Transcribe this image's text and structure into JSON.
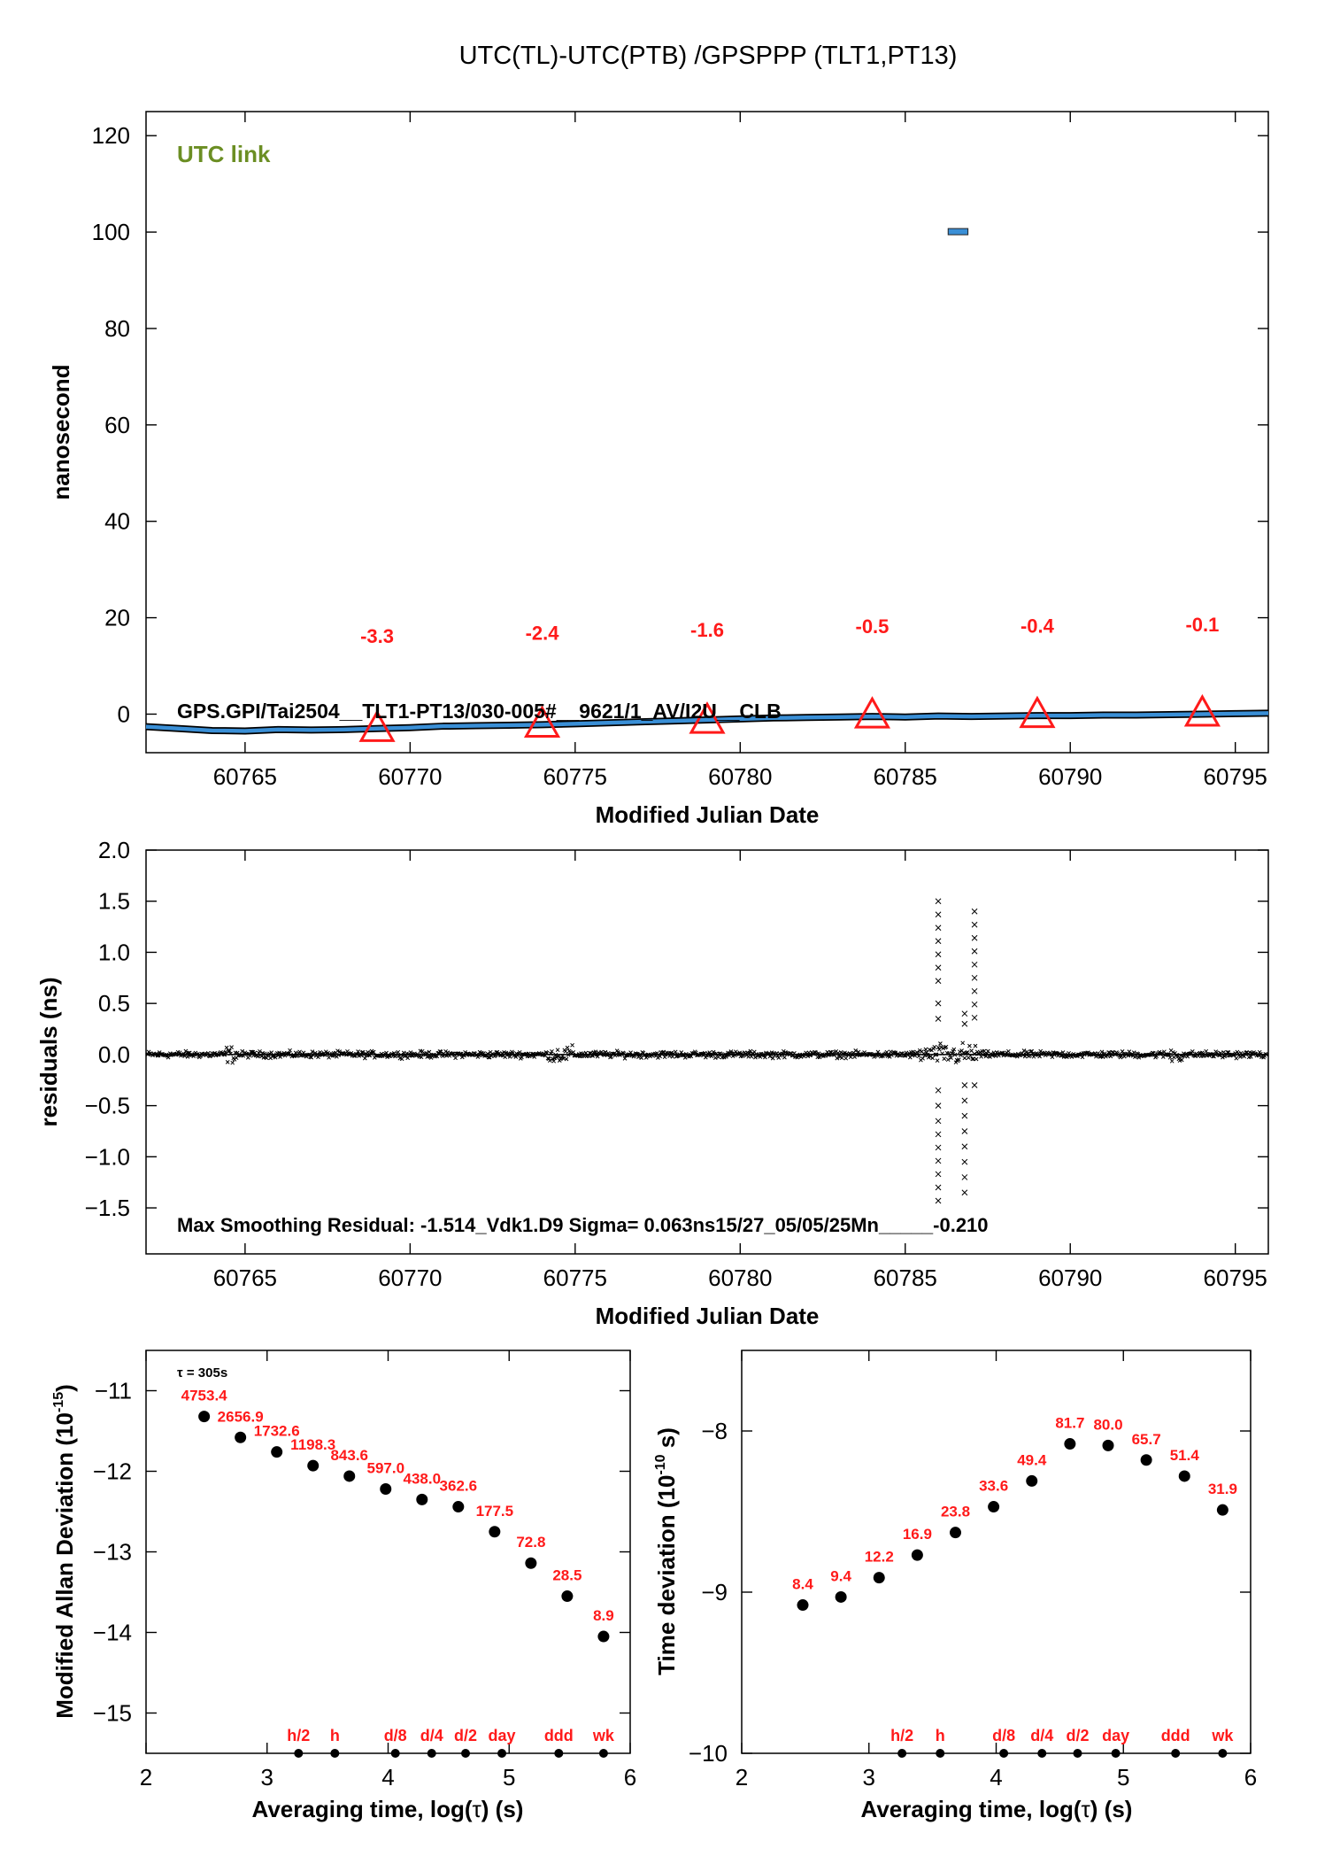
{
  "page_title": "UTC(TL)-UTC(PTB)  /GPSPPP  (TLT1,PT13)",
  "colors": {
    "red": "#ff1a1a",
    "blue": "#3a8fd6",
    "green": "#6b8e23",
    "black": "#000000"
  },
  "panel1": {
    "badge": "UTC link",
    "info_text": "GPS.GPI/Tai2504__TLT1-PT13/030-005#__9621/1_AV/I2U__CLB",
    "xlabel": "Modified Julian Date",
    "ylabel": "nanosecond",
    "xticks": [
      "60765",
      "60770",
      "60775",
      "60780",
      "60785",
      "60790",
      "60795"
    ],
    "yticks": [
      "0",
      "20",
      "40",
      "60",
      "80",
      "100",
      "120"
    ],
    "chart_data": {
      "type": "line",
      "xlim": [
        60762,
        60796
      ],
      "ylim": [
        -8,
        125
      ],
      "series_points": [
        [
          60762,
          -2.6
        ],
        [
          60763,
          -3.0
        ],
        [
          60764,
          -3.4
        ],
        [
          60765,
          -3.5
        ],
        [
          60766,
          -3.2
        ],
        [
          60767,
          -3.3
        ],
        [
          60768,
          -3.2
        ],
        [
          60769,
          -3.0
        ],
        [
          60770,
          -2.8
        ],
        [
          60771,
          -2.5
        ],
        [
          60772,
          -2.4
        ],
        [
          60773,
          -2.3
        ],
        [
          60774,
          -2.2
        ],
        [
          60775,
          -2.0
        ],
        [
          60776,
          -1.8
        ],
        [
          60777,
          -1.6
        ],
        [
          60778,
          -1.4
        ],
        [
          60779,
          -1.2
        ],
        [
          60780,
          -1.0
        ],
        [
          60781,
          -0.8
        ],
        [
          60782,
          -0.7
        ],
        [
          60783,
          -0.6
        ],
        [
          60784,
          -0.5
        ],
        [
          60785,
          -0.6
        ],
        [
          60786,
          -0.4
        ],
        [
          60787,
          -0.5
        ],
        [
          60788,
          -0.4
        ],
        [
          60789,
          -0.3
        ],
        [
          60790,
          -0.3
        ],
        [
          60791,
          -0.2
        ],
        [
          60792,
          -0.2
        ],
        [
          60793,
          -0.1
        ],
        [
          60794,
          0.0
        ],
        [
          60795,
          0.1
        ],
        [
          60796,
          0.2
        ]
      ],
      "outlier_cluster": {
        "x": [
          60786.3,
          60786.9
        ],
        "y": 100
      },
      "triangle_markers": [
        {
          "x": 60769,
          "y": -3.3,
          "label": "-3.3"
        },
        {
          "x": 60774,
          "y": -2.4,
          "label": "-2.4"
        },
        {
          "x": 60779,
          "y": -1.6,
          "label": "-1.6"
        },
        {
          "x": 60784,
          "y": -0.5,
          "label": "-0.5"
        },
        {
          "x": 60789,
          "y": -0.4,
          "label": "-0.4"
        },
        {
          "x": 60794,
          "y": -0.1,
          "label": "-0.1"
        }
      ]
    }
  },
  "panel2": {
    "xlabel": "Modified Julian Date",
    "ylabel": "residuals (ns)",
    "info_text": "Max Smoothing Residual: -1.514_Vdk1.D9  Sigma= 0.063ns15/27_05/05/25Mn_____-0.210",
    "xticks": [
      "60765",
      "60770",
      "60775",
      "60780",
      "60785",
      "60790",
      "60795"
    ],
    "yticks": [
      "2.0",
      "1.5",
      "1.0",
      "0.5",
      "0.0",
      "−0.5",
      "−1.0",
      "−1.5"
    ],
    "chart_data": {
      "type": "scatter",
      "xlim": [
        60762,
        60796
      ],
      "ylim": [
        -1.95,
        2.0
      ],
      "noise_sigma": 0.025,
      "spike_columns": [
        {
          "x": 60786.0,
          "y": [
            1.5,
            1.37,
            1.24,
            1.11,
            0.98,
            0.85,
            0.72,
            0.5,
            0.35,
            -0.35,
            -0.5,
            -0.65,
            -0.78,
            -0.91,
            -1.04,
            -1.17,
            -1.3,
            -1.43
          ]
        },
        {
          "x": 60786.8,
          "y": [
            0.4,
            0.3,
            -0.3,
            -0.45,
            -0.6,
            -0.75,
            -0.9,
            -1.05,
            -1.2,
            -1.35
          ]
        },
        {
          "x": 60787.1,
          "y": [
            1.4,
            1.27,
            1.14,
            1.01,
            0.88,
            0.75,
            0.62,
            0.49,
            0.36,
            -0.3
          ]
        }
      ]
    }
  },
  "panel3": {
    "ylabel_main": "Modified Allan Deviation (10",
    "ylabel_sup": "-15",
    "ylabel_end": ")",
    "xlabel_main": "Averaging time, log(",
    "xlabel_tau": "τ",
    "xlabel_end": ") (s)",
    "note": "τ = 305s",
    "xticks": [
      "2",
      "3",
      "4",
      "5",
      "6"
    ],
    "yticks": [
      "−11",
      "−12",
      "−13",
      "−14",
      "−15"
    ],
    "chart_data": {
      "type": "scatter",
      "xlim": [
        2,
        6
      ],
      "ylim": [
        -15.5,
        -10.5
      ],
      "points": [
        {
          "x": 2.48,
          "y": -11.32,
          "label": "4753.4"
        },
        {
          "x": 2.78,
          "y": -11.58,
          "label": "2656.9"
        },
        {
          "x": 3.08,
          "y": -11.76,
          "label": "1732.6"
        },
        {
          "x": 3.38,
          "y": -11.93,
          "label": "1198.3"
        },
        {
          "x": 3.68,
          "y": -12.06,
          "label": "843.6"
        },
        {
          "x": 3.98,
          "y": -12.22,
          "label": "597.0"
        },
        {
          "x": 4.28,
          "y": -12.35,
          "label": "438.0"
        },
        {
          "x": 4.58,
          "y": -12.44,
          "label": "362.6"
        },
        {
          "x": 4.88,
          "y": -12.75,
          "label": "177.5"
        },
        {
          "x": 5.18,
          "y": -13.14,
          "label": "72.8"
        },
        {
          "x": 5.48,
          "y": -13.55,
          "label": "28.5"
        },
        {
          "x": 5.78,
          "y": -14.05,
          "label": "8.9"
        }
      ],
      "interval_markers": [
        {
          "x": 3.26,
          "label": "h/2"
        },
        {
          "x": 3.56,
          "label": "h"
        },
        {
          "x": 4.06,
          "label": "d/8"
        },
        {
          "x": 4.36,
          "label": "d/4"
        },
        {
          "x": 4.64,
          "label": "d/2"
        },
        {
          "x": 4.94,
          "label": "day"
        },
        {
          "x": 5.41,
          "label": "ddd"
        },
        {
          "x": 5.78,
          "label": "wk"
        }
      ]
    }
  },
  "panel4": {
    "ylabel_main": "Time deviation (10",
    "ylabel_sup": "-10",
    "ylabel_end": " s)",
    "xlabel_main": "Averaging time, log(",
    "xlabel_tau": "τ",
    "xlabel_end": ") (s)",
    "xticks": [
      "2",
      "3",
      "4",
      "5",
      "6"
    ],
    "yticks": [
      "−8",
      "−9",
      "−10"
    ],
    "chart_data": {
      "type": "scatter",
      "xlim": [
        2,
        6
      ],
      "ylim": [
        -10,
        -7.5
      ],
      "points": [
        {
          "x": 2.48,
          "y": -9.08,
          "label": "8.4"
        },
        {
          "x": 2.78,
          "y": -9.03,
          "label": "9.4"
        },
        {
          "x": 3.08,
          "y": -8.91,
          "label": "12.2"
        },
        {
          "x": 3.38,
          "y": -8.77,
          "label": "16.9"
        },
        {
          "x": 3.68,
          "y": -8.63,
          "label": "23.8"
        },
        {
          "x": 3.98,
          "y": -8.47,
          "label": "33.6"
        },
        {
          "x": 4.28,
          "y": -8.31,
          "label": "49.4"
        },
        {
          "x": 4.58,
          "y": -8.08,
          "label": "81.7"
        },
        {
          "x": 4.88,
          "y": -8.09,
          "label": "80.0"
        },
        {
          "x": 5.18,
          "y": -8.18,
          "label": "65.7"
        },
        {
          "x": 5.48,
          "y": -8.28,
          "label": "51.4"
        },
        {
          "x": 5.78,
          "y": -8.49,
          "label": "31.9"
        }
      ],
      "interval_markers": [
        {
          "x": 3.26,
          "label": "h/2"
        },
        {
          "x": 3.56,
          "label": "h"
        },
        {
          "x": 4.06,
          "label": "d/8"
        },
        {
          "x": 4.36,
          "label": "d/4"
        },
        {
          "x": 4.64,
          "label": "d/2"
        },
        {
          "x": 4.94,
          "label": "day"
        },
        {
          "x": 5.41,
          "label": "ddd"
        },
        {
          "x": 5.78,
          "label": "wk"
        }
      ]
    }
  }
}
